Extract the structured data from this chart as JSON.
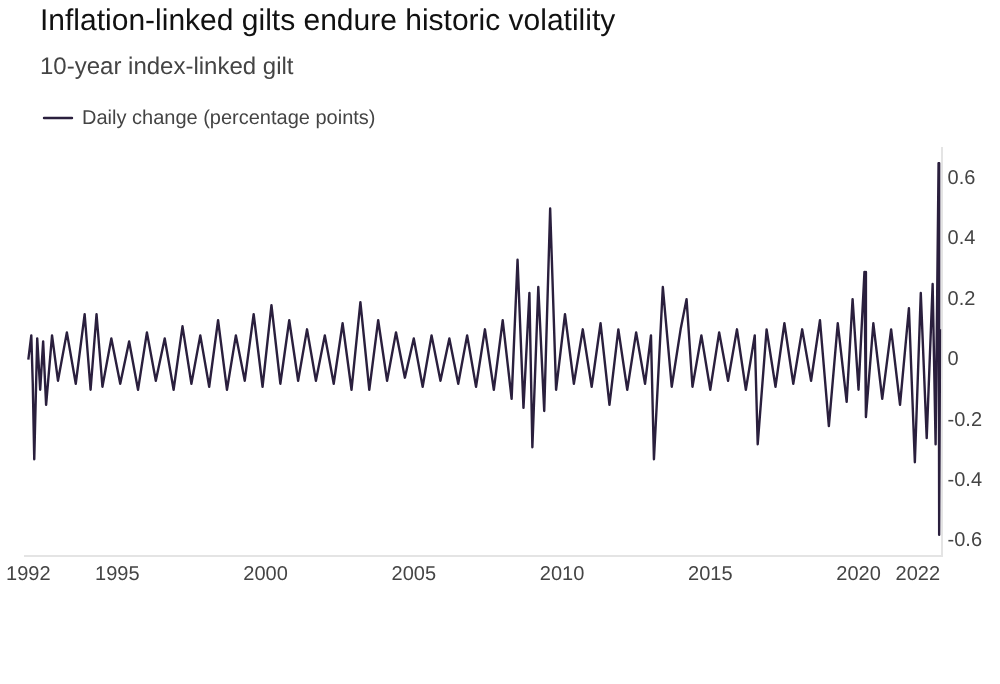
{
  "chart_data": {
    "type": "line",
    "title": "Inflation-linked gilts endure historic volatility",
    "subtitle": "10-year index-linked gilt",
    "x": [
      1992.0,
      1992.1,
      1992.15,
      1992.2,
      1992.3,
      1992.4,
      1992.5,
      1992.6,
      1992.8,
      1993.0,
      1993.3,
      1993.6,
      1993.9,
      1994.1,
      1994.3,
      1994.5,
      1994.8,
      1995.1,
      1995.4,
      1995.7,
      1996.0,
      1996.3,
      1996.6,
      1996.9,
      1997.2,
      1997.5,
      1997.8,
      1998.1,
      1998.4,
      1998.7,
      1999.0,
      1999.3,
      1999.6,
      1999.9,
      2000.2,
      2000.5,
      2000.8,
      2001.1,
      2001.4,
      2001.7,
      2002.0,
      2002.3,
      2002.6,
      2002.9,
      2003.2,
      2003.5,
      2003.8,
      2004.1,
      2004.4,
      2004.7,
      2005.0,
      2005.3,
      2005.6,
      2005.9,
      2006.2,
      2006.5,
      2006.8,
      2007.1,
      2007.4,
      2007.7,
      2008.0,
      2008.3,
      2008.5,
      2008.7,
      2008.9,
      2009.0,
      2009.2,
      2009.4,
      2009.6,
      2009.8,
      2010.1,
      2010.4,
      2010.7,
      2011.0,
      2011.3,
      2011.6,
      2011.9,
      2012.2,
      2012.5,
      2012.8,
      2013.0,
      2013.1,
      2013.4,
      2013.7,
      2014.0,
      2014.2,
      2014.4,
      2014.7,
      2015.0,
      2015.3,
      2015.6,
      2015.9,
      2016.2,
      2016.5,
      2016.6,
      2016.9,
      2017.2,
      2017.5,
      2017.8,
      2018.1,
      2018.4,
      2018.7,
      2019.0,
      2019.3,
      2019.6,
      2019.8,
      2020.0,
      2020.2,
      2020.25,
      2020.5,
      2020.8,
      2021.1,
      2021.4,
      2021.7,
      2021.9,
      2022.1,
      2022.3,
      2022.5,
      2022.6,
      2022.7,
      2022.72,
      2022.75
    ],
    "series": [
      {
        "name": "Daily change (percentage points)",
        "color": "#2a1f3d",
        "values": [
          0,
          0.08,
          -0.08,
          -0.33,
          0.07,
          -0.1,
          0.06,
          -0.15,
          0.08,
          -0.07,
          0.09,
          -0.08,
          0.15,
          -0.1,
          0.15,
          -0.09,
          0.07,
          -0.08,
          0.06,
          -0.1,
          0.09,
          -0.07,
          0.07,
          -0.1,
          0.11,
          -0.08,
          0.08,
          -0.09,
          0.13,
          -0.1,
          0.08,
          -0.07,
          0.15,
          -0.09,
          0.18,
          -0.08,
          0.13,
          -0.07,
          0.1,
          -0.07,
          0.08,
          -0.08,
          0.12,
          -0.1,
          0.19,
          -0.1,
          0.13,
          -0.07,
          0.09,
          -0.06,
          0.07,
          -0.09,
          0.08,
          -0.07,
          0.07,
          -0.08,
          0.08,
          -0.09,
          0.1,
          -0.1,
          0.13,
          -0.13,
          0.33,
          -0.16,
          0.22,
          -0.29,
          0.24,
          -0.17,
          0.5,
          -0.1,
          0.15,
          -0.08,
          0.1,
          -0.09,
          0.12,
          -0.15,
          0.1,
          -0.1,
          0.09,
          -0.08,
          0.08,
          -0.33,
          0.24,
          -0.09,
          0.1,
          0.2,
          -0.09,
          0.08,
          -0.1,
          0.09,
          -0.07,
          0.1,
          -0.1,
          0.08,
          -0.28,
          0.1,
          -0.09,
          0.12,
          -0.08,
          0.1,
          -0.07,
          0.13,
          -0.22,
          0.12,
          -0.14,
          0.2,
          -0.1,
          0.29,
          -0.19,
          0.12,
          -0.13,
          0.1,
          -0.15,
          0.17,
          -0.34,
          0.22,
          -0.26,
          0.25,
          -0.28,
          0.65,
          -0.58,
          0.1
        ]
      }
    ],
    "xlim": [
      1991.9,
      2022.8
    ],
    "xticks": [
      1992,
      1995,
      2000,
      2005,
      2010,
      2015,
      2020,
      2022
    ],
    "ylim": [
      -0.65,
      0.7
    ],
    "yticks": [
      -0.6,
      -0.4,
      -0.2,
      0,
      0.2,
      0.4,
      0.6
    ],
    "grid": false,
    "legend": "top left",
    "marker": "none",
    "line_style": "solid"
  }
}
